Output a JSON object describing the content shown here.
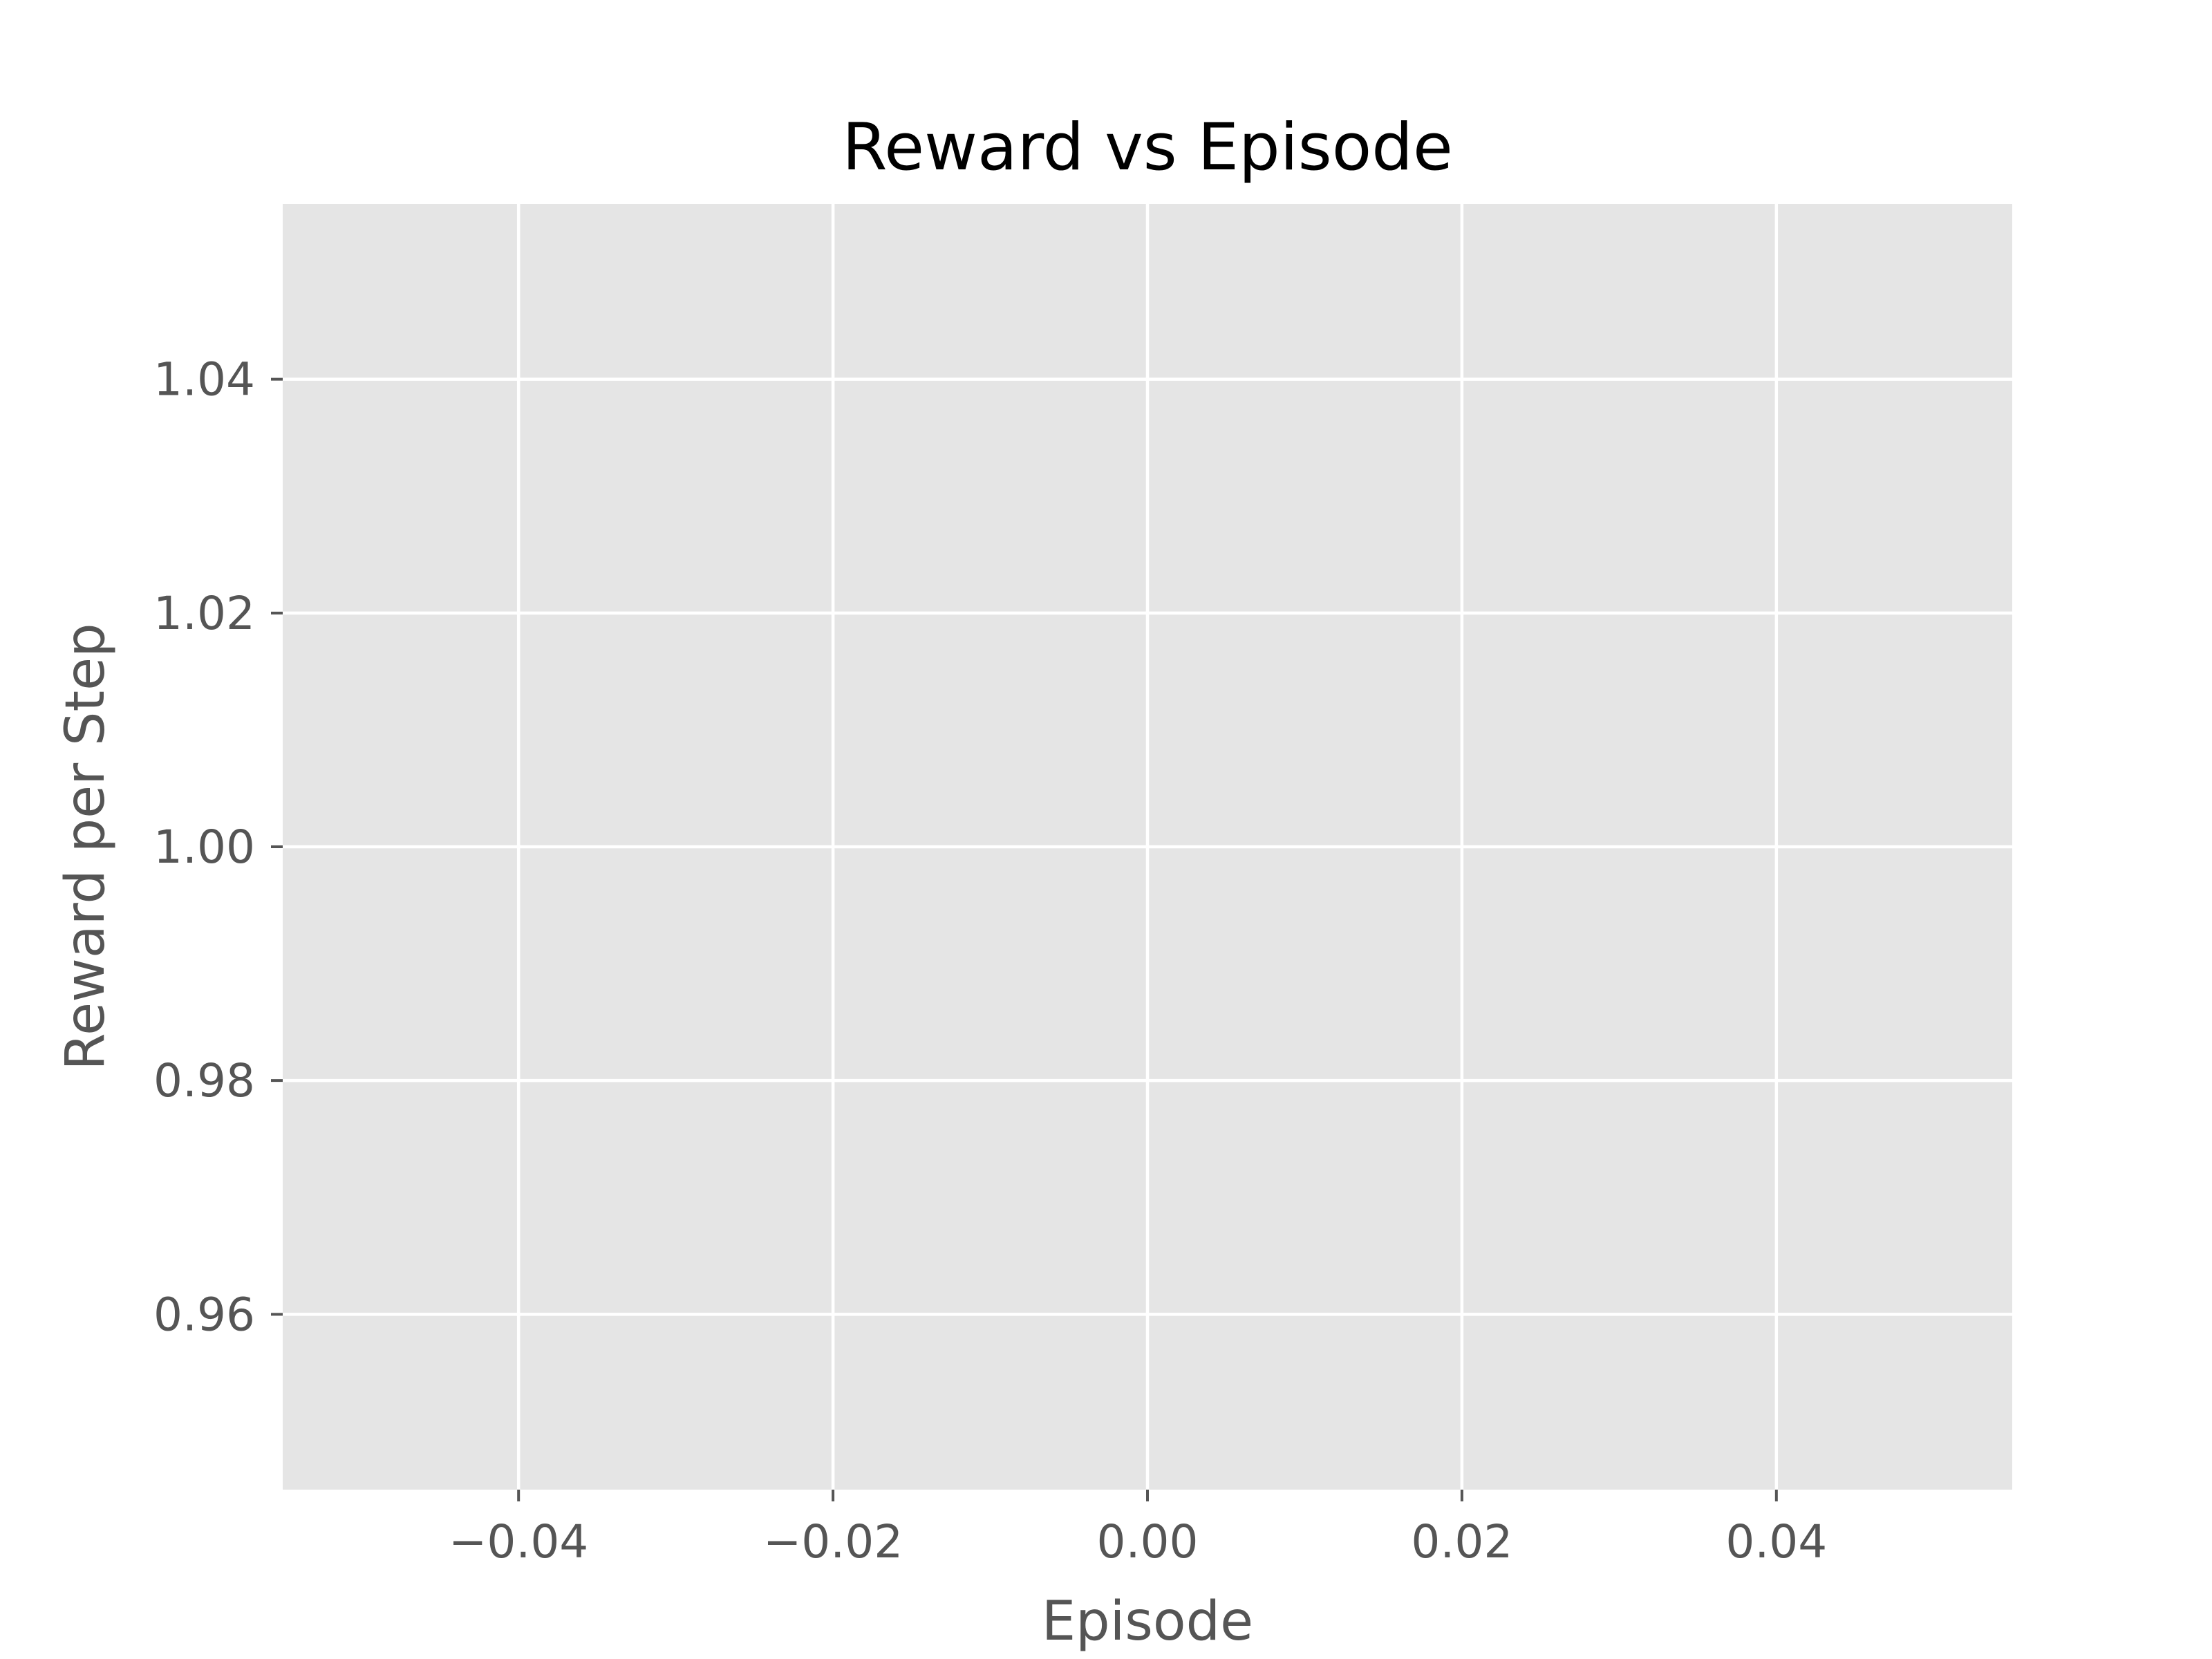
{
  "chart_data": {
    "type": "line",
    "title": "Reward vs Episode",
    "xlabel": "Episode",
    "ylabel": "Reward per Step",
    "xlim": [
      -0.055,
      0.055
    ],
    "ylim": [
      0.945,
      1.055
    ],
    "x_ticks": [
      {
        "value": -0.04,
        "label": "−0.04"
      },
      {
        "value": -0.02,
        "label": "−0.02"
      },
      {
        "value": 0.0,
        "label": "0.00"
      },
      {
        "value": 0.02,
        "label": "0.02"
      },
      {
        "value": 0.04,
        "label": "0.04"
      }
    ],
    "y_ticks": [
      {
        "value": 0.96,
        "label": "0.96"
      },
      {
        "value": 0.98,
        "label": "0.98"
      },
      {
        "value": 1.0,
        "label": "1.00"
      },
      {
        "value": 1.02,
        "label": "1.02"
      },
      {
        "value": 1.04,
        "label": "1.04"
      }
    ],
    "grid": true,
    "series": [
      {
        "x": [],
        "y": []
      }
    ],
    "colors": {
      "plot_background": "#e5e5e5",
      "grid": "#ffffff",
      "text": "#555555"
    }
  }
}
